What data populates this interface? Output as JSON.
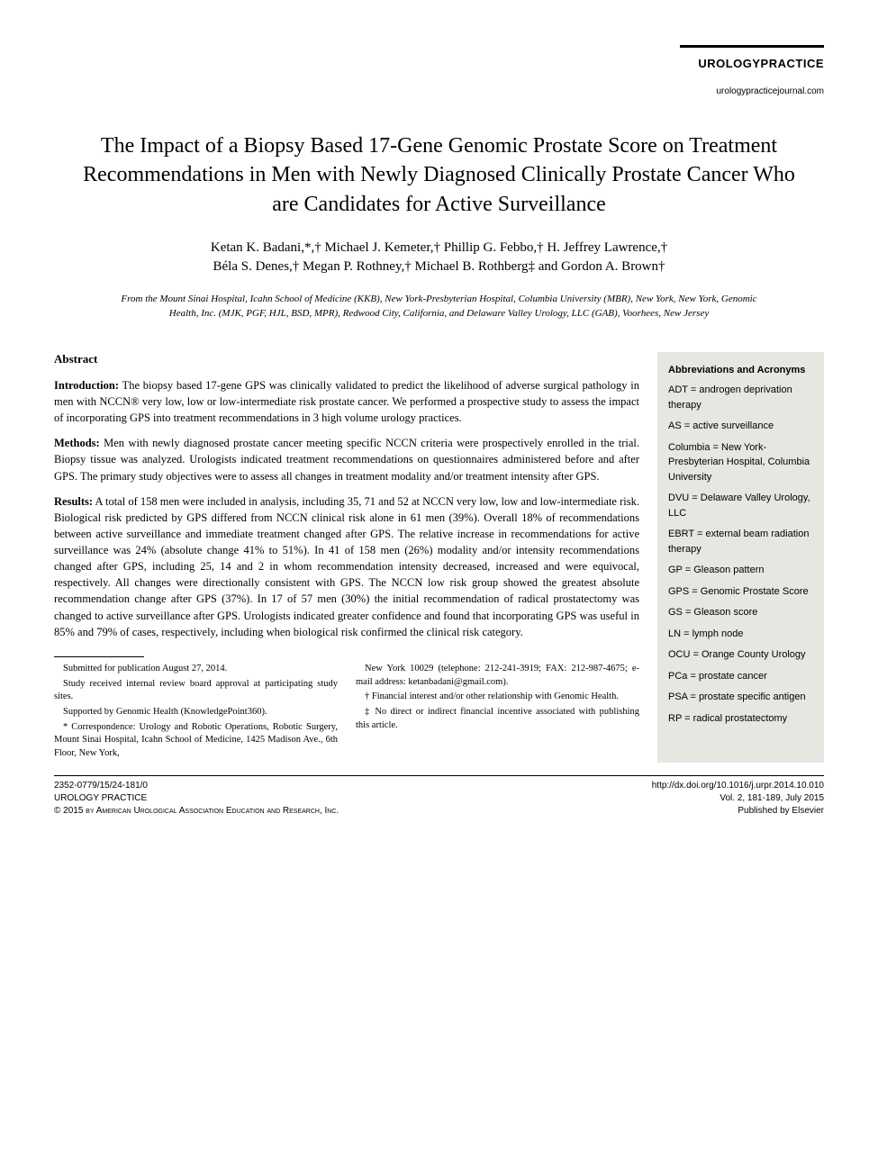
{
  "header": {
    "journal_name": "UROLOGYPRACTICE",
    "journal_url": "urologypracticejournal.com"
  },
  "title": "The Impact of a Biopsy Based 17-Gene Genomic Prostate Score on Treatment Recommendations in Men with Newly Diagnosed Clinically Prostate Cancer Who are Candidates for Active Surveillance",
  "authors_line1": "Ketan K. Badani,*,† Michael J. Kemeter,† Phillip G. Febbo,† H. Jeffrey Lawrence,†",
  "authors_line2": "Béla S. Denes,† Megan P. Rothney,† Michael B. Rothberg‡ and Gordon A. Brown†",
  "affiliations": "From the Mount Sinai Hospital, Icahn School of Medicine (KKB), New York-Presbyterian Hospital, Columbia University (MBR), New York, New York, Genomic Health, Inc. (MJK, PGF, HJL, BSD, MPR), Redwood City, California, and Delaware Valley Urology, LLC (GAB), Voorhees, New Jersey",
  "abstract": {
    "heading": "Abstract",
    "intro_label": "Introduction:",
    "intro_text": " The biopsy based 17-gene GPS was clinically validated to predict the likelihood of adverse surgical pathology in men with NCCN® very low, low or low-intermediate risk prostate cancer. We performed a prospective study to assess the impact of incorporating GPS into treatment recommendations in 3 high volume urology practices.",
    "methods_label": "Methods:",
    "methods_text": " Men with newly diagnosed prostate cancer meeting specific NCCN criteria were prospectively enrolled in the trial. Biopsy tissue was analyzed. Urologists indicated treatment recommendations on questionnaires administered before and after GPS. The primary study objectives were to assess all changes in treatment modality and/or treatment intensity after GPS.",
    "results_label": "Results:",
    "results_text": " A total of 158 men were included in analysis, including 35, 71 and 52 at NCCN very low, low and low-intermediate risk. Biological risk predicted by GPS differed from NCCN clinical risk alone in 61 men (39%). Overall 18% of recommendations between active surveillance and immediate treatment changed after GPS. The relative increase in recommendations for active surveillance was 24% (absolute change 41% to 51%). In 41 of 158 men (26%) modality and/or intensity recommendations changed after GPS, including 25, 14 and 2 in whom recommendation intensity decreased, increased and were equivocal, respectively. All changes were directionally consistent with GPS. The NCCN low risk group showed the greatest absolute recommendation change after GPS (37%). In 17 of 57 men (30%) the initial recommendation of radical prostatectomy was changed to active surveillance after GPS. Urologists indicated greater confidence and found that incorporating GPS was useful in 85% and 79% of cases, respectively, including when biological risk confirmed the clinical risk category."
  },
  "sidebar": {
    "heading": "Abbreviations and Acronyms",
    "items": [
      {
        "abbr": "ADT",
        "def": "androgen deprivation therapy"
      },
      {
        "abbr": "AS",
        "def": "active surveillance"
      },
      {
        "abbr": "Columbia",
        "def": "New York-Presbyterian Hospital, Columbia University"
      },
      {
        "abbr": "DVU",
        "def": "Delaware Valley Urology, LLC"
      },
      {
        "abbr": "EBRT",
        "def": "external beam radiation therapy"
      },
      {
        "abbr": "GP",
        "def": "Gleason pattern"
      },
      {
        "abbr": "GPS",
        "def": "Genomic Prostate Score"
      },
      {
        "abbr": "GS",
        "def": "Gleason score"
      },
      {
        "abbr": "LN",
        "def": "lymph node"
      },
      {
        "abbr": "OCU",
        "def": "Orange County Urology"
      },
      {
        "abbr": "PCa",
        "def": "prostate cancer"
      },
      {
        "abbr": "PSA",
        "def": "prostate specific antigen"
      },
      {
        "abbr": "RP",
        "def": "radical prostatectomy"
      }
    ]
  },
  "footnotes": {
    "left": {
      "l1": "Submitted for publication August 27, 2014.",
      "l2": "Study received internal review board approval at participating study sites.",
      "l3": "Supported by Genomic Health (KnowledgePoint360).",
      "l4": "* Correspondence: Urology and Robotic Operations, Robotic Surgery, Mount Sinai Hospital, Icahn School of Medicine, 1425 Madison Ave., 6th Floor, New York,"
    },
    "right": {
      "r1": "New York 10029 (telephone: 212-241-3919; FAX: 212-987-4675; e-mail address: ketanbadani@gmail.com).",
      "r2": "† Financial interest and/or other relationship with Genomic Health.",
      "r3": "‡ No direct or indirect financial incentive associated with publishing this article."
    }
  },
  "bottom": {
    "left1": "2352-0779/15/24-181/0",
    "left2": "UROLOGY PRACTICE",
    "left3": "© 2015 by American Urological Association Education and Research, Inc.",
    "right1": "http://dx.doi.org/10.1016/j.urpr.2014.10.010",
    "right2": "Vol. 2, 181-189, July 2015",
    "right3": "Published by Elsevier"
  },
  "styles": {
    "background_color": "#ffffff",
    "text_color": "#000000",
    "sidebar_bg": "#e8e6e0",
    "title_fontsize": 24,
    "body_fontsize": 12.5,
    "sidebar_fontsize": 11,
    "footnote_fontsize": 10.5
  }
}
